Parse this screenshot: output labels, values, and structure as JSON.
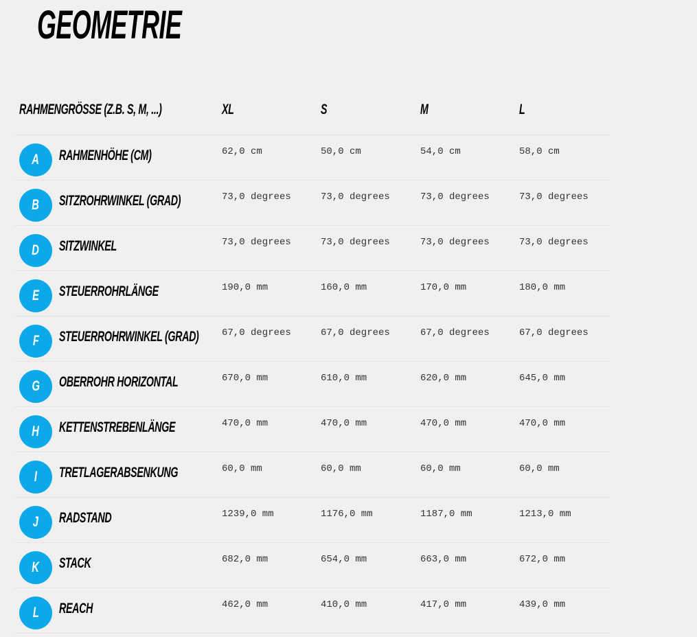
{
  "title": "GEOMETRIE",
  "table": {
    "header_label": "RAHMENGRÖSSE (Z.B. S, M, ...)",
    "sizes": [
      "XL",
      "S",
      "M",
      "L"
    ],
    "badge_color": "#0ba9e9",
    "rows": [
      {
        "letter": "A",
        "label": "RAHMENHÖHE (CM)",
        "values": [
          "62,0 cm",
          "50,0 cm",
          "54,0 cm",
          "58,0 cm"
        ]
      },
      {
        "letter": "B",
        "label": "SITZROHRWINKEL (GRAD)",
        "values": [
          "73,0 degrees",
          "73,0 degrees",
          "73,0 degrees",
          "73,0 degrees"
        ]
      },
      {
        "letter": "D",
        "label": "SITZWINKEL",
        "values": [
          "73,0 degrees",
          "73,0 degrees",
          "73,0 degrees",
          "73,0 degrees"
        ]
      },
      {
        "letter": "E",
        "label": "STEUERROHRLÄNGE",
        "values": [
          "190,0 mm",
          "160,0 mm",
          "170,0 mm",
          "180,0 mm"
        ]
      },
      {
        "letter": "F",
        "label": "STEUERROHRWINKEL (GRAD)",
        "values": [
          "67,0 degrees",
          "67,0 degrees",
          "67,0 degrees",
          "67,0 degrees"
        ]
      },
      {
        "letter": "G",
        "label": "OBERROHR HORIZONTAL",
        "values": [
          "670,0 mm",
          "610,0 mm",
          "620,0 mm",
          "645,0 mm"
        ]
      },
      {
        "letter": "H",
        "label": "KETTENSTREBENLÄNGE",
        "values": [
          "470,0 mm",
          "470,0 mm",
          "470,0 mm",
          "470,0 mm"
        ]
      },
      {
        "letter": "I",
        "label": "TRETLAGERABSENKUNG",
        "values": [
          "60,0 mm",
          "60,0 mm",
          "60,0 mm",
          "60,0 mm"
        ]
      },
      {
        "letter": "J",
        "label": "RADSTAND",
        "values": [
          "1239,0 mm",
          "1176,0 mm",
          "1187,0 mm",
          "1213,0 mm"
        ]
      },
      {
        "letter": "K",
        "label": "STACK",
        "values": [
          "682,0 mm",
          "654,0 mm",
          "663,0 mm",
          "672,0 mm"
        ]
      },
      {
        "letter": "L",
        "label": "REACH",
        "values": [
          "462,0 mm",
          "410,0 mm",
          "417,0 mm",
          "439,0 mm"
        ]
      }
    ]
  }
}
